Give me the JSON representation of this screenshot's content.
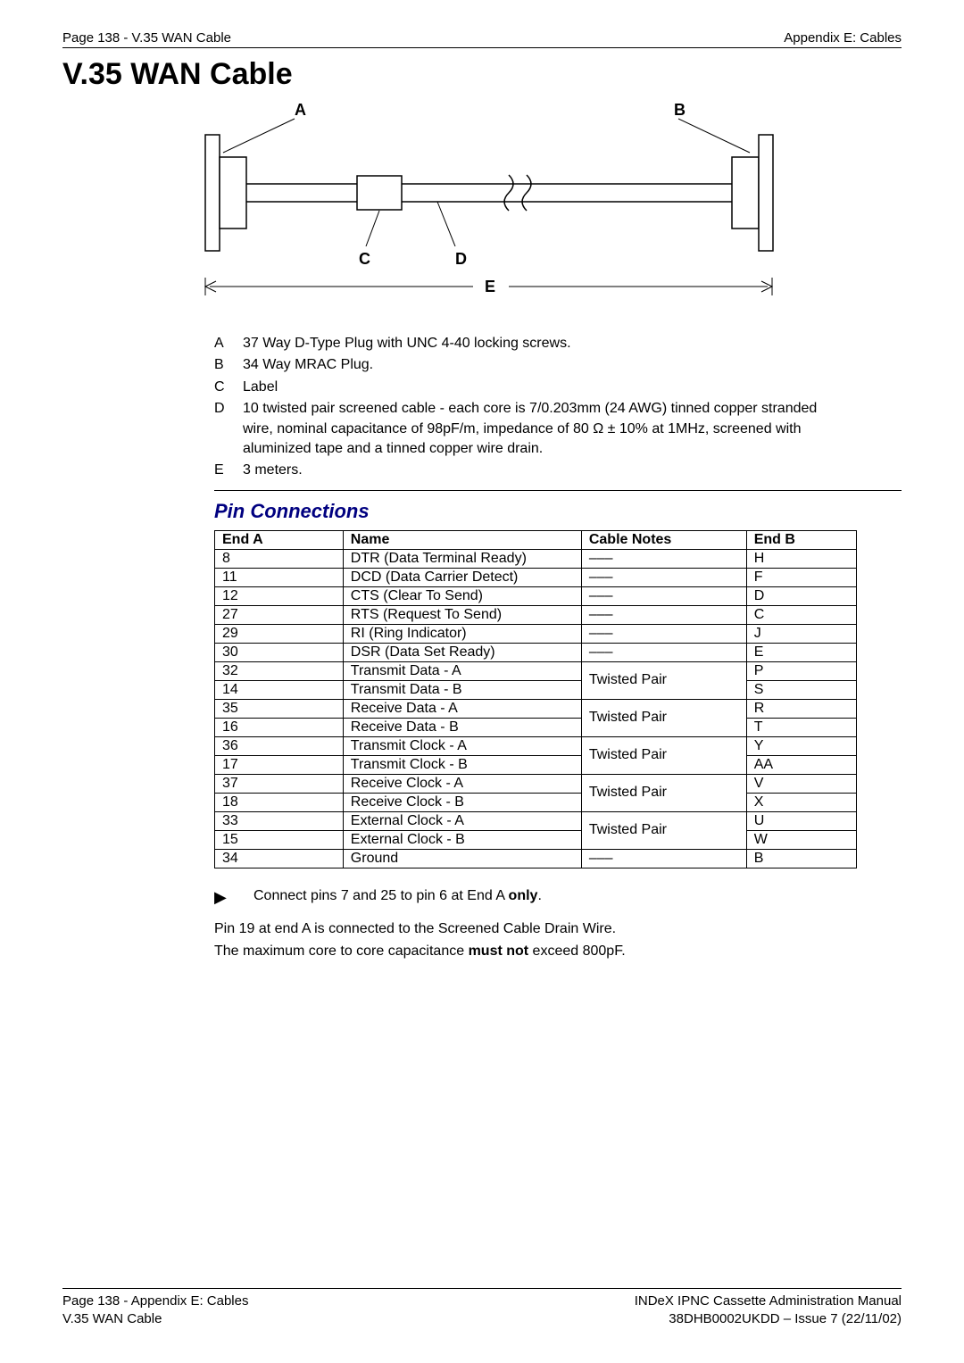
{
  "header": {
    "left": "Page 138 - V.35 WAN Cable",
    "right": "Appendix E: Cables"
  },
  "title": "V.35 WAN Cable",
  "diagram": {
    "labels": {
      "A": "A",
      "B": "B",
      "C": "C",
      "D": "D",
      "E": "E"
    },
    "svg_colors": {
      "stroke": "#000000",
      "fill": "#ffffff"
    }
  },
  "legend": [
    {
      "key": "A",
      "text": "37 Way D-Type Plug with UNC 4-40 locking screws."
    },
    {
      "key": "B",
      "text": "34 Way MRAC Plug."
    },
    {
      "key": "C",
      "text": "Label"
    },
    {
      "key": "D",
      "text": "10 twisted pair screened cable - each core is 7/0.203mm (24 AWG) tinned copper stranded wire, nominal capacitance of 98pF/m, impedance of 80 Ω ± 10% at 1MHz, screened with aluminized tape and a tinned copper wire drain."
    },
    {
      "key": "E",
      "text": "3 meters."
    }
  ],
  "pin_heading": "Pin Connections",
  "table": {
    "headers": {
      "endA": "End A",
      "name": "Name",
      "notes": "Cable Notes",
      "endB": "End B"
    },
    "dash": "–––",
    "twisted": "Twisted Pair",
    "rows_single": [
      {
        "endA": "8",
        "name": "DTR (Data Terminal Ready)",
        "endB": "H"
      },
      {
        "endA": "11",
        "name": "DCD (Data Carrier Detect)",
        "endB": "F"
      },
      {
        "endA": "12",
        "name": "CTS (Clear To Send)",
        "endB": "D"
      },
      {
        "endA": "27",
        "name": "RTS (Request To Send)",
        "endB": "C"
      },
      {
        "endA": "29",
        "name": "RI (Ring Indicator)",
        "endB": "J"
      },
      {
        "endA": "30",
        "name": "DSR (Data Set Ready)",
        "endB": "E"
      }
    ],
    "rows_pairs": [
      {
        "a": {
          "endA": "32",
          "name": "Transmit Data - A",
          "endB": "P"
        },
        "b": {
          "endA": "14",
          "name": "Transmit Data - B",
          "endB": "S"
        }
      },
      {
        "a": {
          "endA": "35",
          "name": "Receive Data - A",
          "endB": "R"
        },
        "b": {
          "endA": "16",
          "name": "Receive Data - B",
          "endB": "T"
        }
      },
      {
        "a": {
          "endA": "36",
          "name": "Transmit Clock - A",
          "endB": "Y"
        },
        "b": {
          "endA": "17",
          "name": "Transmit Clock - B",
          "endB": "AA"
        }
      },
      {
        "a": {
          "endA": "37",
          "name": "Receive Clock - A",
          "endB": "V"
        },
        "b": {
          "endA": "18",
          "name": "Receive Clock - B",
          "endB": "X"
        }
      },
      {
        "a": {
          "endA": "33",
          "name": "External Clock - A",
          "endB": "U"
        },
        "b": {
          "endA": "15",
          "name": "External Clock - B",
          "endB": "W"
        }
      }
    ],
    "row_ground": {
      "endA": "34",
      "name": "Ground",
      "endB": "B"
    }
  },
  "notes": {
    "bullet_pre": "Connect pins 7 and 25 to pin 6 at End A ",
    "bullet_bold": "only",
    "bullet_post": ".",
    "line2": "Pin 19 at end A is connected to the Screened Cable Drain Wire.",
    "line3_pre": "The maximum core to core capacitance ",
    "line3_bold": "must not",
    "line3_post": " exceed 800pF."
  },
  "footer": {
    "left1": "Page 138 - Appendix E: Cables",
    "left2": "V.35 WAN Cable",
    "right1": "INDeX IPNC Cassette Administration Manual",
    "right2": "38DHB0002UKDD – Issue 7 (22/11/02)"
  }
}
